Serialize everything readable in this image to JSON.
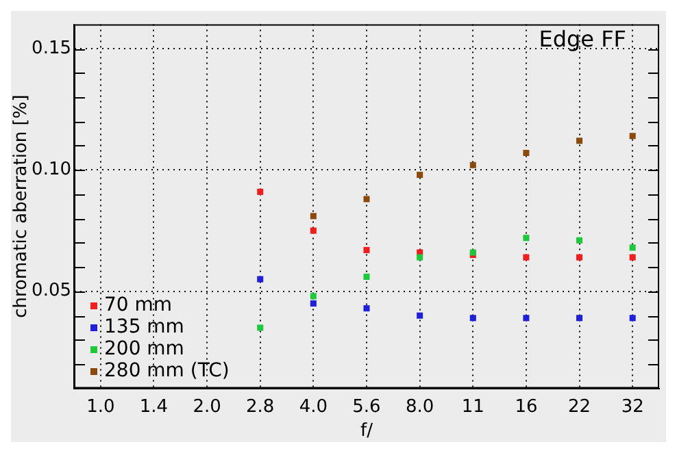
{
  "chart_data": {
    "type": "scatter",
    "xlabel": "f/",
    "ylabel": "chromatic aberration [%]",
    "annotations": [
      "Edge FF"
    ],
    "categories": [
      "1.0",
      "1.4",
      "2.0",
      "2.8",
      "4.0",
      "5.6",
      "8.0",
      "11",
      "16",
      "22",
      "32"
    ],
    "series": [
      {
        "name": "70 mm",
        "color": "#f01e1e",
        "values": [
          null,
          null,
          null,
          0.091,
          0.075,
          0.067,
          0.066,
          0.065,
          0.064,
          0.064,
          0.064
        ]
      },
      {
        "name": "135 mm",
        "color": "#2020d8",
        "values": [
          null,
          null,
          null,
          0.055,
          0.045,
          0.043,
          0.04,
          0.039,
          0.039,
          0.039,
          0.039
        ]
      },
      {
        "name": "200 mm",
        "color": "#1ec83a",
        "values": [
          null,
          null,
          null,
          0.035,
          0.048,
          0.056,
          0.064,
          0.066,
          0.072,
          0.071,
          0.068
        ]
      },
      {
        "name": "280 mm (TC)",
        "color": "#8b4a0c",
        "values": [
          null,
          null,
          null,
          null,
          0.081,
          0.088,
          0.098,
          0.102,
          0.107,
          0.112,
          0.114
        ]
      }
    ],
    "ylim": [
      0.01,
      0.16
    ],
    "yticks": [
      {
        "value": 0.02,
        "label": null
      },
      {
        "value": 0.03,
        "label": null
      },
      {
        "value": 0.04,
        "label": null
      },
      {
        "value": 0.05,
        "label": "0.05"
      },
      {
        "value": 0.06,
        "label": null
      },
      {
        "value": 0.07,
        "label": null
      },
      {
        "value": 0.08,
        "label": null
      },
      {
        "value": 0.09,
        "label": null
      },
      {
        "value": 0.1,
        "label": "0.10"
      },
      {
        "value": 0.11,
        "label": null
      },
      {
        "value": 0.12,
        "label": null
      },
      {
        "value": 0.13,
        "label": null
      },
      {
        "value": 0.14,
        "label": null
      },
      {
        "value": 0.15,
        "label": "0.15"
      }
    ],
    "grid": true,
    "legend": "bottom left",
    "marker": "square"
  }
}
